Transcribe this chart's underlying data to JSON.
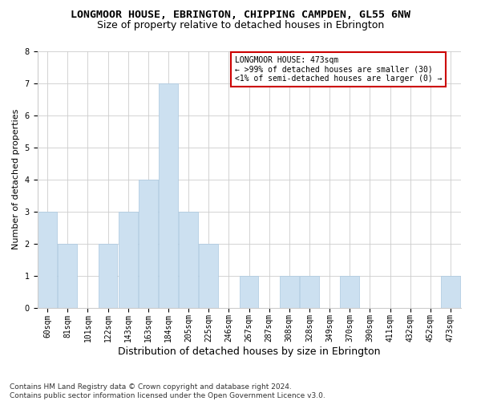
{
  "title": "LONGMOOR HOUSE, EBRINGTON, CHIPPING CAMPDEN, GL55 6NW",
  "subtitle": "Size of property relative to detached houses in Ebrington",
  "xlabel": "Distribution of detached houses by size in Ebrington",
  "ylabel": "Number of detached properties",
  "categories": [
    "60sqm",
    "81sqm",
    "101sqm",
    "122sqm",
    "143sqm",
    "163sqm",
    "184sqm",
    "205sqm",
    "225sqm",
    "246sqm",
    "267sqm",
    "287sqm",
    "308sqm",
    "328sqm",
    "349sqm",
    "370sqm",
    "390sqm",
    "411sqm",
    "432sqm",
    "452sqm",
    "473sqm"
  ],
  "values": [
    3,
    2,
    0,
    2,
    3,
    4,
    7,
    3,
    2,
    0,
    1,
    0,
    1,
    1,
    0,
    1,
    0,
    0,
    0,
    0,
    1
  ],
  "bar_color": "#cce0f0",
  "bar_edge_color": "#aac8e0",
  "ylim": [
    0,
    8
  ],
  "yticks": [
    0,
    1,
    2,
    3,
    4,
    5,
    6,
    7,
    8
  ],
  "grid_color": "#cccccc",
  "background_color": "#ffffff",
  "annotation_title": "LONGMOOR HOUSE: 473sqm",
  "annotation_line1": "← >99% of detached houses are smaller (30)",
  "annotation_line2": "<1% of semi-detached houses are larger (0) →",
  "annotation_box_color": "#ffffff",
  "annotation_box_edge_color": "#cc0000",
  "footer_line1": "Contains HM Land Registry data © Crown copyright and database right 2024.",
  "footer_line2": "Contains public sector information licensed under the Open Government Licence v3.0.",
  "title_fontsize": 9.5,
  "subtitle_fontsize": 9,
  "ylabel_fontsize": 8,
  "xlabel_fontsize": 9,
  "tick_fontsize": 7,
  "annotation_fontsize": 7,
  "footer_fontsize": 6.5
}
